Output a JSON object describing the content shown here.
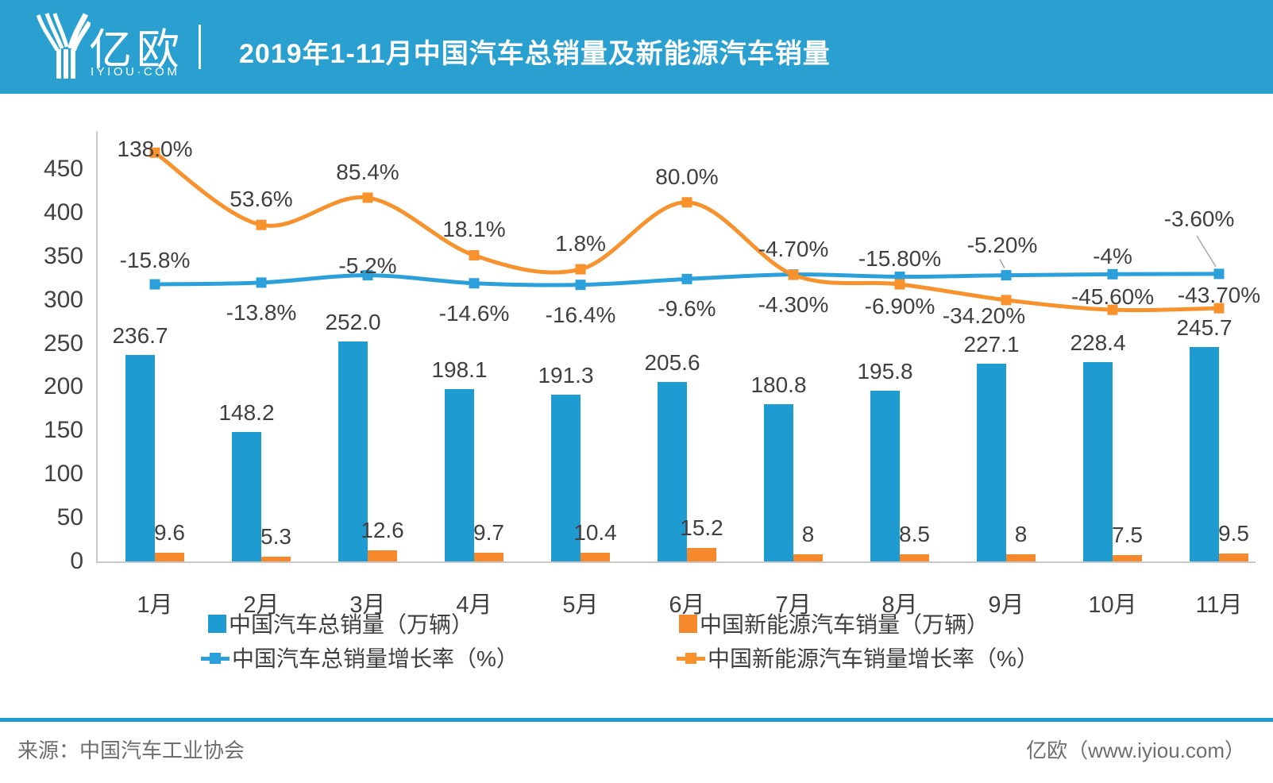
{
  "header": {
    "logo_text": "亿欧",
    "logo_sub": "IYIOU·COM",
    "title": "2019年1-11月中国汽车总销量及新能源汽车销量"
  },
  "footer": {
    "source": "来源：中国汽车工业协会",
    "brand": "亿欧（www.iyiou.com）"
  },
  "colors": {
    "header_bg": "#2AA0D0",
    "blue_bar": "#1E9CD2",
    "blue_line": "#2BA0DB",
    "orange_bar": "#F6892B",
    "orange_line": "#F7922D",
    "axis_line": "#C9C9C9",
    "label_text": "#404040",
    "leader_line": "#A6A6A6"
  },
  "chart_data": {
    "type": "combo",
    "categories": [
      "1月",
      "2月",
      "3月",
      "4月",
      "5月",
      "6月",
      "7月",
      "8月",
      "9月",
      "10月",
      "11月"
    ],
    "series": [
      {
        "name": "中国汽车总销量（万辆）",
        "type": "bar",
        "color": "#1E9CD2",
        "values": [
          236.7,
          148.2,
          252.0,
          198.1,
          191.3,
          205.6,
          180.8,
          195.8,
          227.1,
          228.4,
          245.7
        ],
        "labels": [
          "236.7",
          "148.2",
          "252.0",
          "198.1",
          "191.3",
          "205.6",
          "180.8",
          "195.8",
          "227.1",
          "228.4",
          "245.7"
        ]
      },
      {
        "name": "中国新能源汽车销量（万辆）",
        "type": "bar",
        "color": "#F6892B",
        "values": [
          9.6,
          5.3,
          12.6,
          9.7,
          10.4,
          15.2,
          8,
          8.5,
          8,
          7.5,
          9.5
        ],
        "labels": [
          "9.6",
          "5.3",
          "12.6",
          "9.7",
          "10.4",
          "15.2",
          "8",
          "8.5",
          "8",
          "7.5",
          "9.5"
        ]
      },
      {
        "name": "中国汽车总销量增长率（%）",
        "type": "line",
        "color": "#2BA0DB",
        "values": [
          -15.8,
          -13.8,
          -5.2,
          -14.6,
          -16.4,
          -9.6,
          -4.3,
          -6.9,
          -5.2,
          -4,
          -3.6
        ],
        "labels": [
          "-15.8%",
          "-13.8%",
          "-5.2%",
          "-14.6%",
          "-16.4%",
          "-9.6%",
          "-4.30%",
          "-6.90%",
          "-5.20%",
          "-4%",
          "-3.60%"
        ],
        "label_side": [
          "above",
          "below",
          "above",
          "below",
          "below",
          "below",
          "below",
          "below",
          "above-leader",
          "above",
          "above-leader"
        ]
      },
      {
        "name": "中国新能源汽车销量增长率（%）",
        "type": "line",
        "color": "#F7922D",
        "values": [
          138.0,
          53.6,
          85.4,
          18.1,
          1.8,
          80.0,
          -4.7,
          -15.8,
          -34.2,
          -45.6,
          -43.7
        ],
        "labels": [
          "138.0%",
          "53.6%",
          "85.4%",
          "18.1%",
          "1.8%",
          "80.0%",
          "-4.70%",
          "-15.80%",
          "-34.20%",
          "-45.60%",
          "-43.70%"
        ],
        "label_side": [
          "above",
          "above",
          "above",
          "above",
          "above",
          "above",
          "above",
          "above",
          "below-left",
          "above",
          "above"
        ]
      }
    ],
    "y_axis": {
      "ticks": [
        0,
        50,
        100,
        150,
        200,
        250,
        300,
        350,
        400,
        450
      ],
      "range": [
        0,
        450
      ],
      "grid": false
    },
    "legend_position": "bottom"
  }
}
